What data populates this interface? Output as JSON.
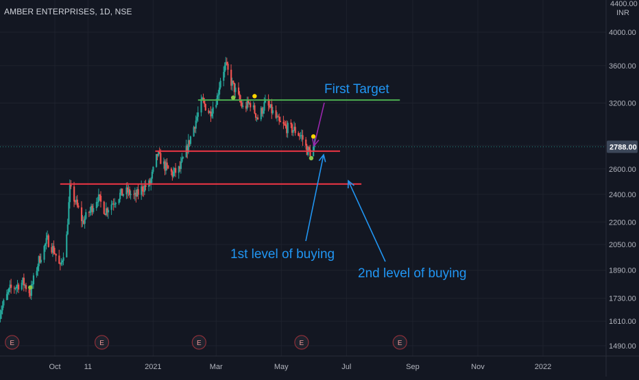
{
  "header": {
    "symbol": "AMBER ENTERPRISES, 1D, NSE"
  },
  "colors": {
    "background": "#131722",
    "grid": "#1e222d",
    "up": "#26a69a",
    "down": "#ef5350",
    "support": "#f23645",
    "target": "#4caf50",
    "annotation": "#2196f3",
    "arrow_purple": "#9c27b0",
    "dot_yellow": "#ffd600",
    "dot_green": "#8bc34a",
    "price_tag": "#3c4759"
  },
  "chart_data": {
    "type": "candlestick",
    "title": "AMBER ENTERPRISES, 1D, NSE",
    "y_axis": {
      "unit": "INR",
      "top_label": "4400.00",
      "ticks": [
        4000,
        3600,
        3200,
        2800,
        2600,
        2400,
        2200,
        2050,
        1890,
        1730,
        1610,
        1490
      ],
      "tick_labels": [
        "4000.00",
        "3600.00",
        "3200.00",
        "2800.00",
        "2600.00",
        "2400.00",
        "2200.00",
        "2050.00",
        "1890.00",
        "1730.00",
        "1610.00",
        "1490.00"
      ],
      "scale": "log"
    },
    "x_axis": {
      "labels": [
        "Oct",
        "11",
        "2021",
        "Mar",
        "May",
        "Jul",
        "Sep",
        "Nov",
        "2022"
      ],
      "dates": [
        "2020-10-01",
        "2020-11-01",
        "2021-01-01",
        "2021-03-01",
        "2021-05-01",
        "2021-07-01",
        "2021-09-01",
        "2021-11-01",
        "2022-01-01"
      ]
    },
    "last_price": 2788.0,
    "last_price_label": "2788.00",
    "price_path": [
      [
        "2020-08-10",
        1650
      ],
      [
        "2020-08-20",
        1780
      ],
      [
        "2020-09-01",
        1820
      ],
      [
        "2020-09-08",
        1760
      ],
      [
        "2020-09-16",
        1950
      ],
      [
        "2020-09-24",
        2080
      ],
      [
        "2020-10-01",
        2000
      ],
      [
        "2020-10-06",
        1900
      ],
      [
        "2020-10-12",
        2100
      ],
      [
        "2020-10-15",
        2440
      ],
      [
        "2020-10-20",
        2350
      ],
      [
        "2020-10-27",
        2200
      ],
      [
        "2020-11-03",
        2280
      ],
      [
        "2020-11-10",
        2380
      ],
      [
        "2020-11-17",
        2280
      ],
      [
        "2020-11-24",
        2340
      ],
      [
        "2020-12-01",
        2400
      ],
      [
        "2020-12-08",
        2420
      ],
      [
        "2020-12-15",
        2380
      ],
      [
        "2020-12-22",
        2450
      ],
      [
        "2020-12-29",
        2480
      ],
      [
        "2021-01-05",
        2720
      ],
      [
        "2021-01-12",
        2620
      ],
      [
        "2021-01-19",
        2560
      ],
      [
        "2021-01-26",
        2600
      ],
      [
        "2021-02-02",
        2780
      ],
      [
        "2021-02-09",
        3000
      ],
      [
        "2021-02-16",
        3220
      ],
      [
        "2021-02-23",
        3100
      ],
      [
        "2021-03-02",
        3260
      ],
      [
        "2021-03-06",
        3520
      ],
      [
        "2021-03-10",
        3600
      ],
      [
        "2021-03-15",
        3420
      ],
      [
        "2021-03-20",
        3300
      ],
      [
        "2021-03-26",
        3150
      ],
      [
        "2021-04-02",
        3200
      ],
      [
        "2021-04-09",
        3050
      ],
      [
        "2021-04-16",
        3200
      ],
      [
        "2021-04-22",
        3120
      ],
      [
        "2021-04-29",
        3000
      ],
      [
        "2021-05-06",
        2960
      ],
      [
        "2021-05-13",
        2940
      ],
      [
        "2021-05-20",
        2880
      ],
      [
        "2021-05-25",
        2760
      ],
      [
        "2021-05-28",
        2740
      ],
      [
        "2021-06-01",
        2788
      ]
    ],
    "levels": [
      {
        "name": "First Target",
        "price": 3230,
        "from": "2021-02-12",
        "to": "2021-08-20",
        "color": "#4caf50"
      },
      {
        "name": "1st level of buying",
        "price": 2750,
        "from": "2021-01-03",
        "to": "2021-06-25",
        "color": "#f23645"
      },
      {
        "name": "2nd level of buying",
        "price": 2480,
        "from": "2020-10-06",
        "to": "2021-07-15",
        "color": "#f23645"
      }
    ],
    "annotations": [
      {
        "text": "First Target"
      },
      {
        "text": "1st level of buying"
      },
      {
        "text": "2nd level of buying"
      }
    ],
    "markers": [
      {
        "date": "2020-09-08",
        "price": 1790,
        "color": "#8bc34a"
      },
      {
        "date": "2021-03-17",
        "price": 3255,
        "color": "#8bc34a"
      },
      {
        "date": "2021-04-06",
        "price": 3270,
        "color": "#ffd600"
      },
      {
        "date": "2021-05-31",
        "price": 2880,
        "color": "#ffd600"
      },
      {
        "date": "2021-05-29",
        "price": 2690,
        "color": "#8bc34a"
      }
    ],
    "events": [
      {
        "label": "E",
        "date": "2020-08-22"
      },
      {
        "label": "E",
        "date": "2020-11-14"
      },
      {
        "label": "E",
        "date": "2021-02-13"
      },
      {
        "label": "E",
        "date": "2021-05-20"
      },
      {
        "label": "E",
        "date": "2021-08-20"
      }
    ]
  }
}
